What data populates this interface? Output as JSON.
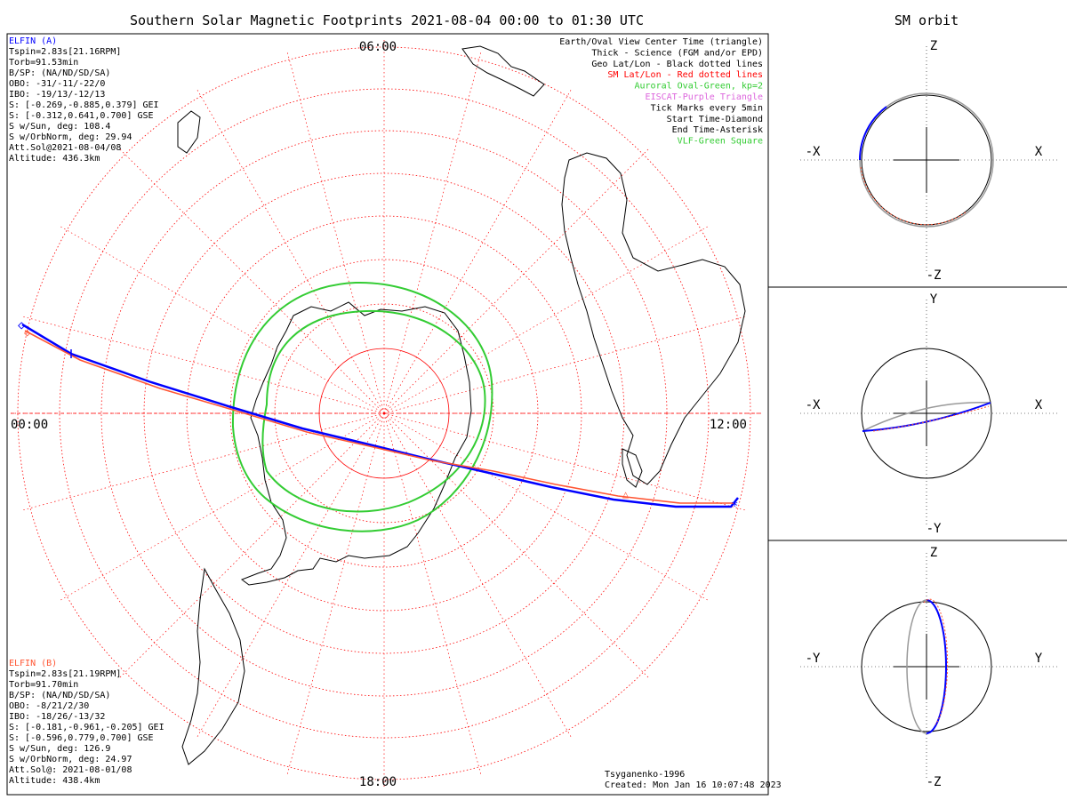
{
  "header": {
    "title": "Southern Solar Magnetic Footprints 2021-08-04 00:00 to 01:30 UTC",
    "orbit_title": "SM orbit"
  },
  "polar_map": {
    "hour_labels": {
      "top": "06:00",
      "left": "00:00",
      "right": "12:00",
      "bottom": "18:00"
    }
  },
  "legend": [
    {
      "text": "Earth/Oval View Center Time (triangle)",
      "color": "#000000"
    },
    {
      "text": "Thick - Science (FGM and/or EPD)",
      "color": "#000000"
    },
    {
      "text": "Geo Lat/Lon - Black dotted lines",
      "color": "#000000"
    },
    {
      "text": "SM Lat/Lon - Red dotted lines",
      "color": "#ff0000"
    },
    {
      "text": "Auroral Oval-Green, kp=2",
      "color": "#33cc33"
    },
    {
      "text": "EISCAT-Purple Triangle",
      "color": "#dd66dd"
    },
    {
      "text": "Tick Marks every 5min",
      "color": "#000000"
    },
    {
      "text": "Start Time-Diamond",
      "color": "#000000"
    },
    {
      "text": "End Time-Asterisk",
      "color": "#000000"
    },
    {
      "text": "VLF-Green Square",
      "color": "#33cc33"
    }
  ],
  "probe_a": {
    "name": "ELFIN (A)",
    "color": "#0000ff",
    "lines": [
      "Tspin=2.83s[21.16RPM]",
      "Torb=91.53min",
      "B/SP: (NA/ND/SD/SA)",
      "OBO: -31/-11/-22/0",
      "IBO: -19/13/-12/13",
      "S: [-0.269,-0.885,0.379] GEI",
      "S: [-0.312,0.641,0.700] GSE",
      "S w/Sun, deg: 108.4",
      "S w/OrbNorm, deg: 29.94",
      "Att.Sol@2021-08-04/08",
      "Altitude: 436.3km"
    ]
  },
  "probe_b": {
    "name": "ELFIN (B)",
    "color": "#ff5533",
    "lines": [
      "Tspin=2.83s[21.19RPM]",
      "Torb=91.70min",
      "B/SP: (NA/ND/SD/SA)",
      "OBO: -8/21/2/30",
      "IBO: -18/26/-13/32",
      "S: [-0.181,-0.961,-0.205] GEI",
      "S: [-0.596,0.779,0.700] GSE",
      "S w/Sun, deg: 126.9",
      "S w/OrbNorm, deg: 24.97",
      "Att.Sol@: 2021-08-01/08",
      "Altitude: 438.4km"
    ]
  },
  "footer": {
    "model": "Tsyganenko-1996",
    "created": "Created: Mon Jan 16 10:07:48 2023"
  },
  "orbit_panels": [
    {
      "top_label": "Z",
      "bottom_label": "-Z",
      "left_label": "-X",
      "right_label": "X"
    },
    {
      "top_label": "Y",
      "bottom_label": "-Y",
      "left_label": "-X",
      "right_label": "X"
    },
    {
      "top_label": "Z",
      "bottom_label": "-Z",
      "left_label": "-Y",
      "right_label": "Y"
    }
  ],
  "colors": {
    "probe_a": "#0000ff",
    "probe_b": "#ff5533",
    "auroral_oval": "#33cc33",
    "sm_grid": "#ff0000",
    "orbit_gray": "#999999"
  }
}
